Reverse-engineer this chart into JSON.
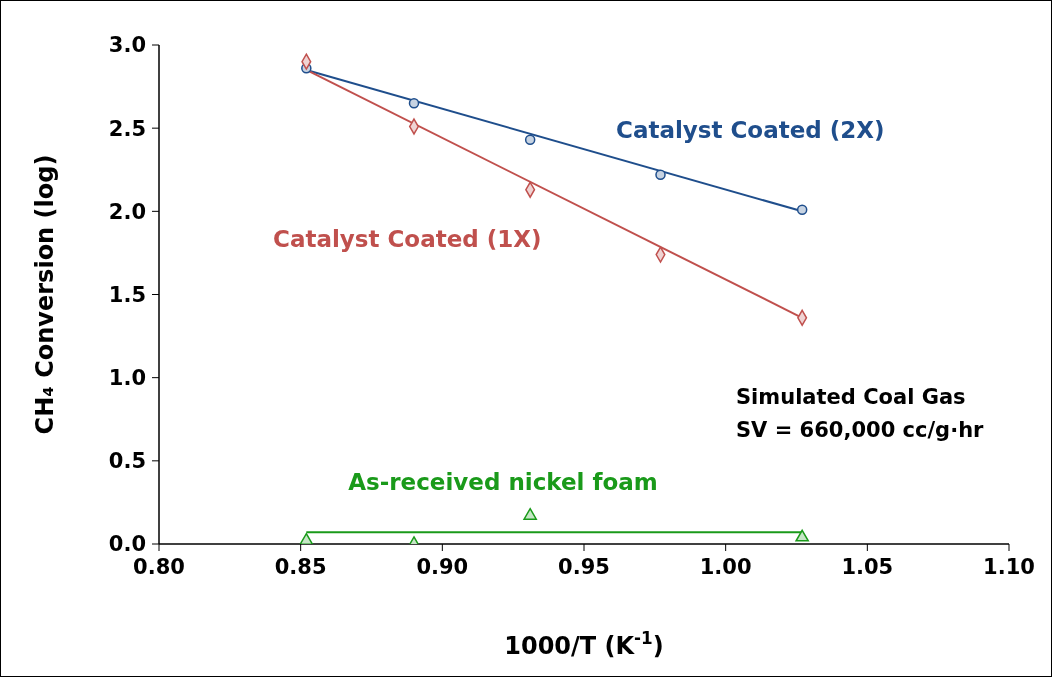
{
  "chart_data": {
    "type": "scatter",
    "xlabel": "1000/T (K$^{-1}$)",
    "ylabel": "CH₄ Conversion (log)",
    "xlim": [
      0.8,
      1.1
    ],
    "xticks": [
      {
        "value": 0.8,
        "label": "0.80"
      },
      {
        "value": 0.85,
        "label": "0.85"
      },
      {
        "value": 0.9,
        "label": "0.90"
      },
      {
        "value": 0.95,
        "label": "0.95"
      },
      {
        "value": 1.0,
        "label": "1.00"
      },
      {
        "value": 1.05,
        "label": "1.05"
      },
      {
        "value": 1.1,
        "label": "1.10"
      }
    ],
    "ylim": [
      0,
      3
    ],
    "yticks": [
      {
        "value": 0,
        "label": "0.0"
      },
      {
        "value": 0.5,
        "label": "0.5"
      },
      {
        "value": 1,
        "label": "1.0"
      },
      {
        "value": 1.5,
        "label": "1.5"
      },
      {
        "value": 2,
        "label": "2.0"
      },
      {
        "value": 2.5,
        "label": "2.5"
      },
      {
        "value": 3,
        "label": "3.0"
      }
    ],
    "annotations": [
      "Simulated Coal Gas",
      "SV = 660,000 cc/g·hr"
    ],
    "series": [
      {
        "name": "Catalyst Coated (2X)",
        "color": "#1f4e8c",
        "marker": "circle",
        "x": [
          0.852,
          0.89,
          0.931,
          0.977,
          1.027
        ],
        "values": [
          2.86,
          2.65,
          2.43,
          2.22,
          2.01
        ]
      },
      {
        "name": "Catalyst Coated (1X)",
        "color": "#c0504d",
        "marker": "diamond",
        "x": [
          0.852,
          0.89,
          0.931,
          0.977,
          1.027
        ],
        "values": [
          2.9,
          2.51,
          2.13,
          1.74,
          1.36
        ]
      },
      {
        "name": "As-received nickel foam",
        "color": "#1a9a1a",
        "marker": "triangle",
        "x": [
          0.852,
          0.89,
          0.931,
          0.977,
          1.027
        ],
        "values": [
          0.02,
          0.0,
          0.17,
          null,
          0.04
        ]
      },
      {
        "type": "line",
        "color": "#1f4e8c",
        "x": [
          0.852,
          1.027
        ],
        "values": [
          2.85,
          2.0
        ]
      },
      {
        "type": "line",
        "color": "#c0504d",
        "x": [
          0.852,
          1.027
        ],
        "values": [
          2.85,
          1.36
        ]
      },
      {
        "type": "line",
        "color": "#1a9a1a",
        "x": [
          0.852,
          1.027
        ],
        "values": [
          0.07,
          0.07
        ]
      }
    ]
  }
}
